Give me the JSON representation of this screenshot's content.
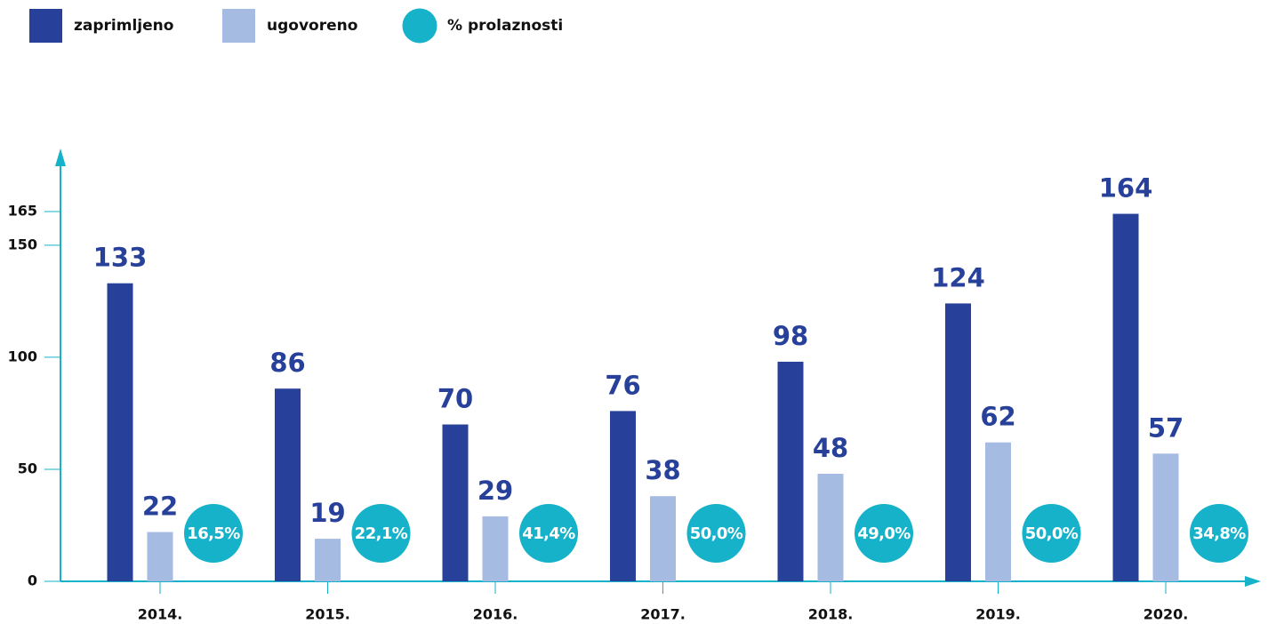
{
  "chart_data": {
    "type": "bar",
    "categories": [
      "2014.",
      "2015.",
      "2016.",
      "2017.",
      "2018.",
      "2019.",
      "2020."
    ],
    "series": [
      {
        "name": "zaprimljeno",
        "color": "#27409a",
        "values": [
          133,
          86,
          70,
          76,
          98,
          124,
          164
        ]
      },
      {
        "name": "ugovoreno",
        "color": "#a6bbe2",
        "values": [
          22,
          19,
          29,
          38,
          48,
          62,
          57
        ]
      },
      {
        "name": "% prolaznosti",
        "color": "#15b2c9",
        "values": [
          16.5,
          22.1,
          41.4,
          50.0,
          49.0,
          50.0,
          34.8
        ],
        "value_labels": [
          "16,5%",
          "22,1%",
          "41,4%",
          "50,0%",
          "49,0%",
          "50,0%",
          "34,8%"
        ]
      }
    ],
    "ylim": [
      0,
      190
    ],
    "yticks": [
      0,
      50,
      100,
      150,
      165
    ],
    "legend": "top-left"
  }
}
